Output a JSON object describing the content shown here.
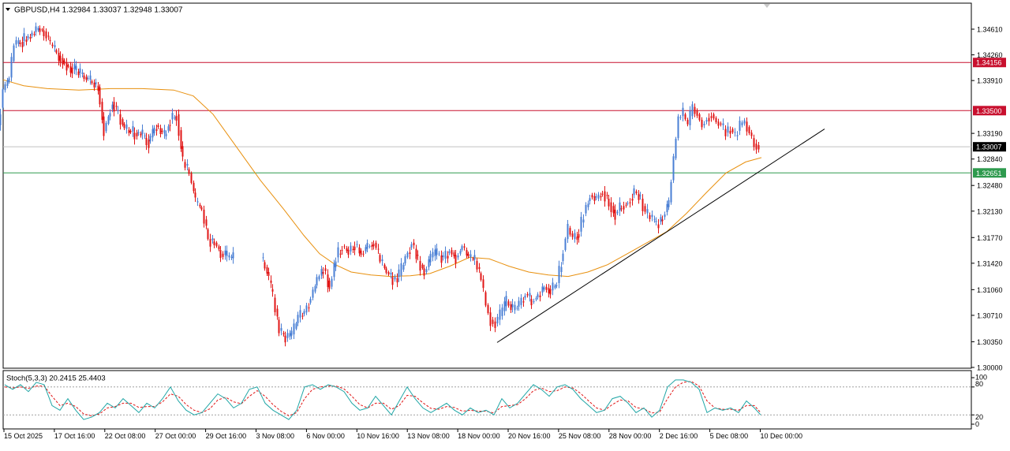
{
  "header": {
    "symbol_info": "GBPUSD,H4  1.32984 1.33037 1.32948 1.33007"
  },
  "stochastic": {
    "label": "Stoch(5,3,3) 20.2415 25.4403",
    "levels": [
      "100",
      "80",
      "20",
      "0"
    ]
  },
  "colors": {
    "bull_candle": "#4a7fd4",
    "bear_candle": "#e01515",
    "moving_average": "#e8900e",
    "resistance_line": "#c8102e",
    "support_line": "#2e9a4e",
    "current_price_line": "#c0c0c0",
    "trend_line": "#000000",
    "stoch_main": "#20a6a6",
    "stoch_signal": "#e01515",
    "grid_frame": "#000000"
  },
  "chart_data": {
    "type": "candlestick",
    "symbol": "GBPUSD",
    "timeframe": "H4",
    "last_ohlc": {
      "open": 1.32984,
      "high": 1.33037,
      "low": 1.32948,
      "close": 1.33007
    },
    "price_axis_ticks": [
      "1.34610",
      "1.34260",
      "1.33910",
      "1.33190",
      "1.32840",
      "1.32480",
      "1.32130",
      "1.31770",
      "1.31420",
      "1.31060",
      "1.30710",
      "1.30350",
      "1.30000"
    ],
    "price_labels": [
      {
        "value": "1.34156",
        "kind": "resistance",
        "color": "#c8102e"
      },
      {
        "value": "1.33500",
        "kind": "resistance",
        "color": "#c8102e"
      },
      {
        "value": "1.33007",
        "kind": "current",
        "color": "#000000"
      },
      {
        "value": "1.32651",
        "kind": "support",
        "color": "#2e9a4e"
      }
    ],
    "horizontal_lines": [
      1.34156,
      1.335,
      1.33007,
      1.32651
    ],
    "ylim": [
      1.2995,
      1.3475
    ],
    "time_axis_labels": [
      "15 Oct 2025",
      "17 Oct 16:00",
      "22 Oct 08:00",
      "27 Oct 00:00",
      "29 Oct 16:00",
      "3 Nov 08:00",
      "6 Nov 00:00",
      "10 Nov 16:00",
      "13 Nov 08:00",
      "18 Nov 00:00",
      "20 Nov 16:00",
      "25 Nov 08:00",
      "28 Nov 00:00",
      "2 Dec 16:00",
      "5 Dec 08:00",
      "10 Dec 00:00"
    ],
    "price_path": [
      [
        0,
        1.333
      ],
      [
        6,
        1.3378
      ],
      [
        14,
        1.3395
      ],
      [
        20,
        1.344
      ],
      [
        30,
        1.3445
      ],
      [
        40,
        1.3452
      ],
      [
        50,
        1.3462
      ],
      [
        58,
        1.3458
      ],
      [
        66,
        1.344
      ],
      [
        76,
        1.3425
      ],
      [
        86,
        1.3412
      ],
      [
        96,
        1.3405
      ],
      [
        106,
        1.3398
      ],
      [
        116,
        1.339
      ],
      [
        126,
        1.3382
      ],
      [
        134,
        1.3322
      ],
      [
        144,
        1.3362
      ],
      [
        152,
        1.3345
      ],
      [
        160,
        1.3325
      ],
      [
        170,
        1.332
      ],
      [
        180,
        1.3318
      ],
      [
        190,
        1.3308
      ],
      [
        200,
        1.333
      ],
      [
        210,
        1.3315
      ],
      [
        218,
        1.3338
      ],
      [
        226,
        1.3345
      ],
      [
        234,
        1.328
      ],
      [
        242,
        1.3265
      ],
      [
        250,
        1.3225
      ],
      [
        258,
        1.3215
      ],
      [
        266,
        1.3175
      ],
      [
        274,
        1.317
      ],
      [
        282,
        1.3155
      ],
      [
        290,
        1.315
      ],
      [
        298,
        1.3148
      ],
      [
        333,
        1.315
      ],
      [
        340,
        1.313
      ],
      [
        348,
        1.3095
      ],
      [
        356,
        1.305
      ],
      [
        364,
        1.304
      ],
      [
        372,
        1.3045
      ],
      [
        380,
        1.3068
      ],
      [
        388,
        1.3075
      ],
      [
        396,
        1.3095
      ],
      [
        404,
        1.312
      ],
      [
        412,
        1.3135
      ],
      [
        420,
        1.311
      ],
      [
        428,
        1.315
      ],
      [
        436,
        1.3165
      ],
      [
        444,
        1.3158
      ],
      [
        452,
        1.3168
      ],
      [
        460,
        1.3155
      ],
      [
        468,
        1.3165
      ],
      [
        476,
        1.317
      ],
      [
        484,
        1.3145
      ],
      [
        492,
        1.313
      ],
      [
        500,
        1.312
      ],
      [
        508,
        1.3125
      ],
      [
        516,
        1.315
      ],
      [
        524,
        1.317
      ],
      [
        532,
        1.3145
      ],
      [
        540,
        1.313
      ],
      [
        548,
        1.315
      ],
      [
        556,
        1.3155
      ],
      [
        564,
        1.3148
      ],
      [
        572,
        1.316
      ],
      [
        580,
        1.315
      ],
      [
        588,
        1.3165
      ],
      [
        596,
        1.315
      ],
      [
        604,
        1.3145
      ],
      [
        612,
        1.312
      ],
      [
        618,
        1.3085
      ],
      [
        624,
        1.3065
      ],
      [
        630,
        1.306
      ],
      [
        636,
        1.307
      ],
      [
        644,
        1.309
      ],
      [
        652,
        1.3078
      ],
      [
        660,
        1.3085
      ],
      [
        668,
        1.31
      ],
      [
        676,
        1.309
      ],
      [
        684,
        1.3098
      ],
      [
        692,
        1.311
      ],
      [
        700,
        1.3105
      ],
      [
        708,
        1.3115
      ],
      [
        716,
        1.316
      ],
      [
        722,
        1.319
      ],
      [
        728,
        1.3175
      ],
      [
        736,
        1.3185
      ],
      [
        742,
        1.321
      ],
      [
        750,
        1.3235
      ],
      [
        758,
        1.323
      ],
      [
        766,
        1.324
      ],
      [
        774,
        1.3225
      ],
      [
        782,
        1.321
      ],
      [
        790,
        1.322
      ],
      [
        798,
        1.3225
      ],
      [
        806,
        1.324
      ],
      [
        814,
        1.323
      ],
      [
        820,
        1.321
      ],
      [
        826,
        1.3205
      ],
      [
        834,
        1.3195
      ],
      [
        842,
        1.3205
      ],
      [
        850,
        1.3225
      ],
      [
        856,
        1.3285
      ],
      [
        862,
        1.334
      ],
      [
        868,
        1.3345
      ],
      [
        874,
        1.333
      ],
      [
        880,
        1.3355
      ],
      [
        886,
        1.3345
      ],
      [
        892,
        1.333
      ],
      [
        898,
        1.334
      ],
      [
        904,
        1.3345
      ],
      [
        910,
        1.3335
      ],
      [
        916,
        1.333
      ],
      [
        922,
        1.332
      ],
      [
        928,
        1.3325
      ],
      [
        934,
        1.3315
      ],
      [
        940,
        1.333
      ],
      [
        946,
        1.3335
      ],
      [
        952,
        1.332
      ],
      [
        958,
        1.3305
      ],
      [
        964,
        1.3301
      ]
    ],
    "moving_average": [
      [
        4,
        1.3392
      ],
      [
        30,
        1.3384
      ],
      [
        60,
        1.338
      ],
      [
        100,
        1.3378
      ],
      [
        140,
        1.338
      ],
      [
        180,
        1.338
      ],
      [
        220,
        1.3378
      ],
      [
        245,
        1.337
      ],
      [
        270,
        1.3345
      ],
      [
        300,
        1.33
      ],
      [
        330,
        1.3255
      ],
      [
        360,
        1.3215
      ],
      [
        385,
        1.318
      ],
      [
        405,
        1.3155
      ],
      [
        425,
        1.314
      ],
      [
        445,
        1.313
      ],
      [
        470,
        1.3126
      ],
      [
        495,
        1.3124
      ],
      [
        520,
        1.3125
      ],
      [
        545,
        1.3128
      ],
      [
        570,
        1.3138
      ],
      [
        595,
        1.315
      ],
      [
        620,
        1.3148
      ],
      [
        645,
        1.3138
      ],
      [
        670,
        1.313
      ],
      [
        695,
        1.3126
      ],
      [
        720,
        1.3124
      ],
      [
        745,
        1.313
      ],
      [
        770,
        1.314
      ],
      [
        795,
        1.3155
      ],
      [
        820,
        1.317
      ],
      [
        845,
        1.3185
      ],
      [
        870,
        1.321
      ],
      [
        895,
        1.3238
      ],
      [
        920,
        1.3265
      ],
      [
        945,
        1.328
      ],
      [
        965,
        1.3286
      ]
    ],
    "trend_line": {
      "from": [
        630,
        1.3034
      ],
      "to": [
        1045,
        1.3325
      ]
    },
    "stochastic_k": [
      [
        6,
        85
      ],
      [
        16,
        75
      ],
      [
        26,
        85
      ],
      [
        36,
        70
      ],
      [
        46,
        90
      ],
      [
        56,
        85
      ],
      [
        66,
        40
      ],
      [
        76,
        30
      ],
      [
        86,
        55
      ],
      [
        96,
        30
      ],
      [
        106,
        10
      ],
      [
        116,
        15
      ],
      [
        126,
        25
      ],
      [
        136,
        45
      ],
      [
        146,
        35
      ],
      [
        156,
        55
      ],
      [
        166,
        40
      ],
      [
        176,
        25
      ],
      [
        186,
        45
      ],
      [
        196,
        35
      ],
      [
        206,
        55
      ],
      [
        216,
        80
      ],
      [
        226,
        50
      ],
      [
        236,
        30
      ],
      [
        246,
        20
      ],
      [
        256,
        25
      ],
      [
        266,
        45
      ],
      [
        276,
        65
      ],
      [
        286,
        55
      ],
      [
        296,
        35
      ],
      [
        306,
        45
      ],
      [
        316,
        75
      ],
      [
        326,
        80
      ],
      [
        336,
        45
      ],
      [
        346,
        30
      ],
      [
        356,
        20
      ],
      [
        366,
        10
      ],
      [
        376,
        30
      ],
      [
        386,
        80
      ],
      [
        396,
        85
      ],
      [
        406,
        75
      ],
      [
        416,
        85
      ],
      [
        426,
        80
      ],
      [
        436,
        70
      ],
      [
        446,
        45
      ],
      [
        456,
        30
      ],
      [
        466,
        35
      ],
      [
        476,
        60
      ],
      [
        486,
        40
      ],
      [
        496,
        20
      ],
      [
        506,
        50
      ],
      [
        516,
        80
      ],
      [
        526,
        55
      ],
      [
        536,
        35
      ],
      [
        546,
        25
      ],
      [
        556,
        35
      ],
      [
        566,
        45
      ],
      [
        576,
        30
      ],
      [
        586,
        20
      ],
      [
        596,
        35
      ],
      [
        606,
        25
      ],
      [
        616,
        30
      ],
      [
        626,
        20
      ],
      [
        636,
        55
      ],
      [
        646,
        35
      ],
      [
        656,
        45
      ],
      [
        666,
        65
      ],
      [
        676,
        85
      ],
      [
        686,
        75
      ],
      [
        696,
        60
      ],
      [
        706,
        80
      ],
      [
        716,
        85
      ],
      [
        726,
        75
      ],
      [
        736,
        55
      ],
      [
        746,
        40
      ],
      [
        756,
        25
      ],
      [
        766,
        30
      ],
      [
        776,
        55
      ],
      [
        786,
        60
      ],
      [
        796,
        45
      ],
      [
        806,
        25
      ],
      [
        816,
        35
      ],
      [
        826,
        15
      ],
      [
        836,
        30
      ],
      [
        846,
        80
      ],
      [
        856,
        95
      ],
      [
        866,
        95
      ],
      [
        876,
        90
      ],
      [
        886,
        75
      ],
      [
        896,
        25
      ],
      [
        906,
        35
      ],
      [
        916,
        30
      ],
      [
        926,
        35
      ],
      [
        936,
        25
      ],
      [
        946,
        50
      ],
      [
        956,
        35
      ],
      [
        964,
        20
      ]
    ],
    "stochastic_d": [
      [
        6,
        80
      ],
      [
        16,
        78
      ],
      [
        26,
        80
      ],
      [
        36,
        77
      ],
      [
        46,
        82
      ],
      [
        56,
        82
      ],
      [
        66,
        60
      ],
      [
        76,
        40
      ],
      [
        86,
        45
      ],
      [
        96,
        38
      ],
      [
        106,
        22
      ],
      [
        116,
        18
      ],
      [
        126,
        22
      ],
      [
        136,
        35
      ],
      [
        146,
        38
      ],
      [
        156,
        45
      ],
      [
        166,
        45
      ],
      [
        176,
        36
      ],
      [
        186,
        38
      ],
      [
        196,
        38
      ],
      [
        206,
        48
      ],
      [
        216,
        65
      ],
      [
        226,
        60
      ],
      [
        236,
        42
      ],
      [
        246,
        30
      ],
      [
        256,
        25
      ],
      [
        266,
        33
      ],
      [
        276,
        52
      ],
      [
        286,
        58
      ],
      [
        296,
        48
      ],
      [
        306,
        44
      ],
      [
        316,
        60
      ],
      [
        326,
        72
      ],
      [
        336,
        60
      ],
      [
        346,
        42
      ],
      [
        356,
        28
      ],
      [
        366,
        18
      ],
      [
        376,
        25
      ],
      [
        386,
        55
      ],
      [
        396,
        75
      ],
      [
        406,
        80
      ],
      [
        416,
        82
      ],
      [
        426,
        82
      ],
      [
        436,
        76
      ],
      [
        446,
        60
      ],
      [
        456,
        42
      ],
      [
        466,
        35
      ],
      [
        476,
        45
      ],
      [
        486,
        45
      ],
      [
        496,
        32
      ],
      [
        506,
        40
      ],
      [
        516,
        62
      ],
      [
        526,
        60
      ],
      [
        536,
        46
      ],
      [
        546,
        34
      ],
      [
        556,
        32
      ],
      [
        566,
        38
      ],
      [
        576,
        36
      ],
      [
        586,
        28
      ],
      [
        596,
        30
      ],
      [
        606,
        28
      ],
      [
        616,
        28
      ],
      [
        626,
        24
      ],
      [
        636,
        38
      ],
      [
        646,
        40
      ],
      [
        656,
        42
      ],
      [
        666,
        55
      ],
      [
        676,
        72
      ],
      [
        686,
        78
      ],
      [
        696,
        70
      ],
      [
        706,
        72
      ],
      [
        716,
        80
      ],
      [
        726,
        78
      ],
      [
        736,
        66
      ],
      [
        746,
        50
      ],
      [
        756,
        35
      ],
      [
        766,
        30
      ],
      [
        776,
        42
      ],
      [
        786,
        52
      ],
      [
        796,
        50
      ],
      [
        806,
        36
      ],
      [
        816,
        33
      ],
      [
        826,
        24
      ],
      [
        836,
        26
      ],
      [
        846,
        55
      ],
      [
        856,
        80
      ],
      [
        866,
        90
      ],
      [
        876,
        92
      ],
      [
        886,
        82
      ],
      [
        896,
        50
      ],
      [
        906,
        35
      ],
      [
        916,
        32
      ],
      [
        926,
        32
      ],
      [
        936,
        30
      ],
      [
        946,
        40
      ],
      [
        956,
        40
      ],
      [
        964,
        25
      ]
    ]
  }
}
